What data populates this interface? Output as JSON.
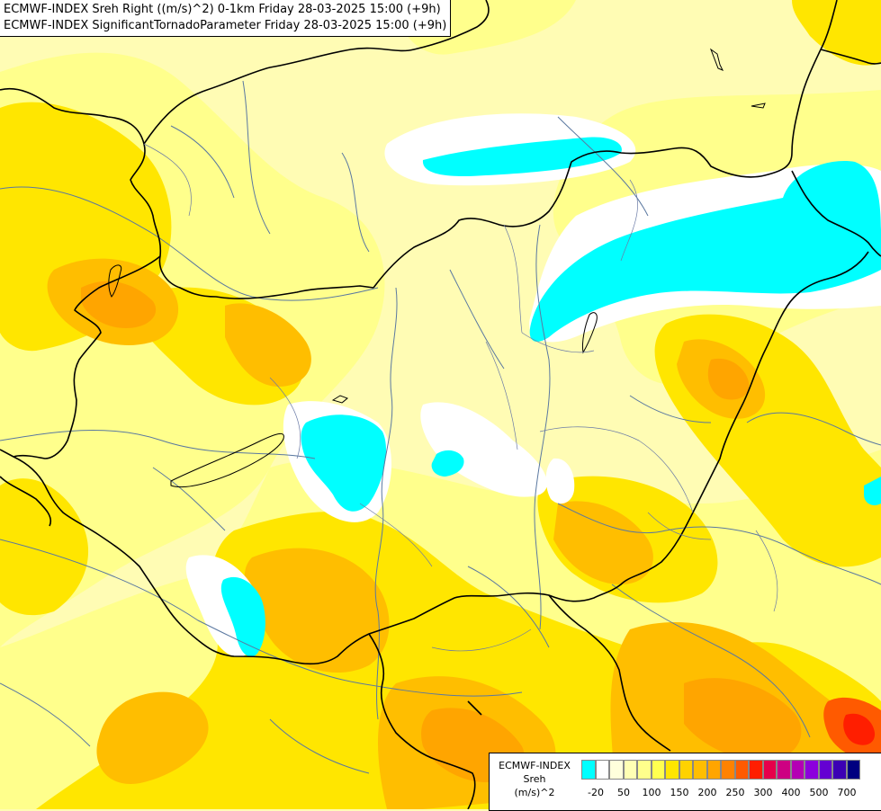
{
  "titles": {
    "line1": "ECMWF-INDEX Sreh Right ((m/s)^2) 0-1km Friday 28-03-2025 15:00 (+9h)",
    "line2": "ECMWF-INDEX SignificantTornadoParameter Friday 28-03-2025 15:00 (+9h)"
  },
  "legend": {
    "line1": "ECMWF-INDEX",
    "line2": "Sreh",
    "line3": "(m/s)^2",
    "swatch_colors": [
      "#00ffff",
      "#ffffff",
      "#ffffdc",
      "#ffffb4",
      "#ffff8c",
      "#ffff50",
      "#ffe600",
      "#ffd200",
      "#ffbe00",
      "#ffa500",
      "#ff8200",
      "#ff5a00",
      "#ff1e00",
      "#e6004b",
      "#cd0082",
      "#b400b4",
      "#8c00dc",
      "#6400d2",
      "#3c00b4",
      "#000080"
    ],
    "ticks": [
      "-20",
      "50",
      "100",
      "150",
      "200",
      "250",
      "300",
      "400",
      "500",
      "700"
    ]
  },
  "colors": {
    "background": "#fffcb4",
    "lightYellow": "#ffff8c",
    "yellow": "#ffe600",
    "gold": "#ffd200",
    "orange": "#ffbe00",
    "darkOrange": "#ffa500",
    "redOrange": "#ff5a00",
    "red": "#ff1e00",
    "cyan": "#00ffff",
    "white": "#ffffff",
    "border": "#000000",
    "river": "#5a78a0"
  }
}
